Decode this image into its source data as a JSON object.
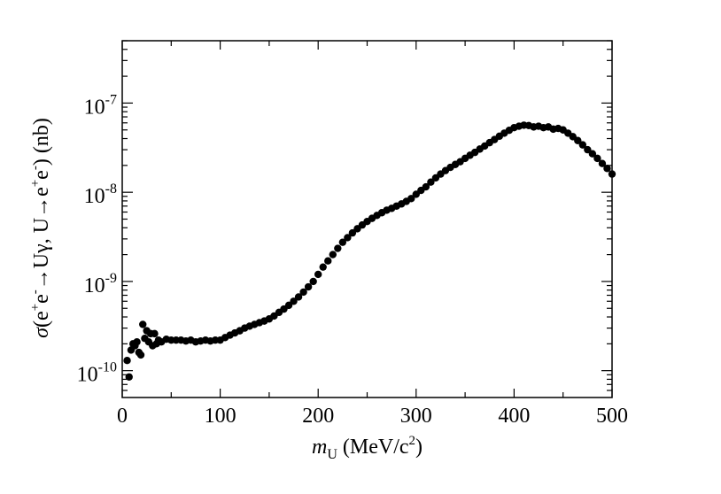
{
  "chart_data": {
    "type": "scatter",
    "title": "",
    "xlabel": "m_U (MeV/c^2)",
    "ylabel": "σ(e+e- → Uγ, U → e+e-) (nb)",
    "xlim": [
      0,
      500
    ],
    "ylim": [
      5e-11,
      5e-07
    ],
    "yscale": "log",
    "grid": false,
    "x_ticks": [
      "0",
      "100",
      "200",
      "300",
      "400",
      "500"
    ],
    "y_ticks": [
      {
        "value": 1e-10,
        "label": "10",
        "exp": "-10"
      },
      {
        "value": 1e-09,
        "label": "10",
        "exp": "-9"
      },
      {
        "value": 1e-08,
        "label": "10",
        "exp": "-8"
      },
      {
        "value": 1e-07,
        "label": "10",
        "exp": "-7"
      }
    ],
    "series": [
      {
        "name": "cross section",
        "x": [
          5,
          7,
          9,
          11,
          13,
          15,
          17,
          19,
          21,
          23,
          25,
          27,
          29,
          31,
          33,
          35,
          37,
          40,
          45,
          50,
          55,
          60,
          65,
          70,
          75,
          80,
          85,
          90,
          95,
          100,
          105,
          110,
          115,
          120,
          125,
          130,
          135,
          140,
          145,
          150,
          155,
          160,
          165,
          170,
          175,
          180,
          185,
          190,
          195,
          200,
          205,
          210,
          215,
          220,
          225,
          230,
          235,
          240,
          245,
          250,
          255,
          260,
          265,
          270,
          275,
          280,
          285,
          290,
          295,
          300,
          305,
          310,
          315,
          320,
          325,
          330,
          335,
          340,
          345,
          350,
          355,
          360,
          365,
          370,
          375,
          380,
          385,
          390,
          395,
          400,
          405,
          410,
          415,
          420,
          425,
          430,
          435,
          440,
          445,
          450,
          455,
          460,
          465,
          470,
          475,
          480,
          485,
          490,
          495,
          500
        ],
        "values": [
          1.3e-10,
          8.5e-11,
          1.7e-10,
          2e-10,
          1.9e-10,
          2.1e-10,
          1.6e-10,
          1.5e-10,
          3.3e-10,
          2.3e-10,
          2.8e-10,
          2.1e-10,
          2.6e-10,
          1.9e-10,
          2.6e-10,
          2e-10,
          2.2e-10,
          2.1e-10,
          2.25e-10,
          2.2e-10,
          2.2e-10,
          2.2e-10,
          2.15e-10,
          2.2e-10,
          2.1e-10,
          2.15e-10,
          2.2e-10,
          2.15e-10,
          2.2e-10,
          2.2e-10,
          2.35e-10,
          2.5e-10,
          2.65e-10,
          2.8e-10,
          3e-10,
          3.15e-10,
          3.3e-10,
          3.45e-10,
          3.6e-10,
          3.8e-10,
          4.1e-10,
          4.5e-10,
          4.9e-10,
          5.4e-10,
          6e-10,
          6.7e-10,
          7.6e-10,
          8.7e-10,
          1e-09,
          1.2e-09,
          1.45e-09,
          1.7e-09,
          2e-09,
          2.35e-09,
          2.75e-09,
          3.1e-09,
          3.5e-09,
          3.9e-09,
          4.3e-09,
          4.7e-09,
          5.1e-09,
          5.5e-09,
          5.9e-09,
          6.3e-09,
          6.6e-09,
          7e-09,
          7.4e-09,
          7.9e-09,
          8.5e-09,
          9.5e-09,
          1.05e-08,
          1.15e-08,
          1.3e-08,
          1.45e-08,
          1.6e-08,
          1.75e-08,
          1.9e-08,
          2.05e-08,
          2.2e-08,
          2.4e-08,
          2.6e-08,
          2.8e-08,
          3.05e-08,
          3.3e-08,
          3.6e-08,
          3.9e-08,
          4.25e-08,
          4.6e-08,
          4.95e-08,
          5.3e-08,
          5.5e-08,
          5.65e-08,
          5.6e-08,
          5.4e-08,
          5.5e-08,
          5.3e-08,
          5.4e-08,
          5.1e-08,
          5.2e-08,
          5e-08,
          4.6e-08,
          4.2e-08,
          3.8e-08,
          3.4e-08,
          3e-08,
          2.7e-08,
          2.4e-08,
          2.1e-08,
          1.85e-08,
          1.6e-08
        ]
      }
    ]
  },
  "colors": {
    "marker": "#000000",
    "axis": "#000000",
    "background": "#ffffff"
  }
}
